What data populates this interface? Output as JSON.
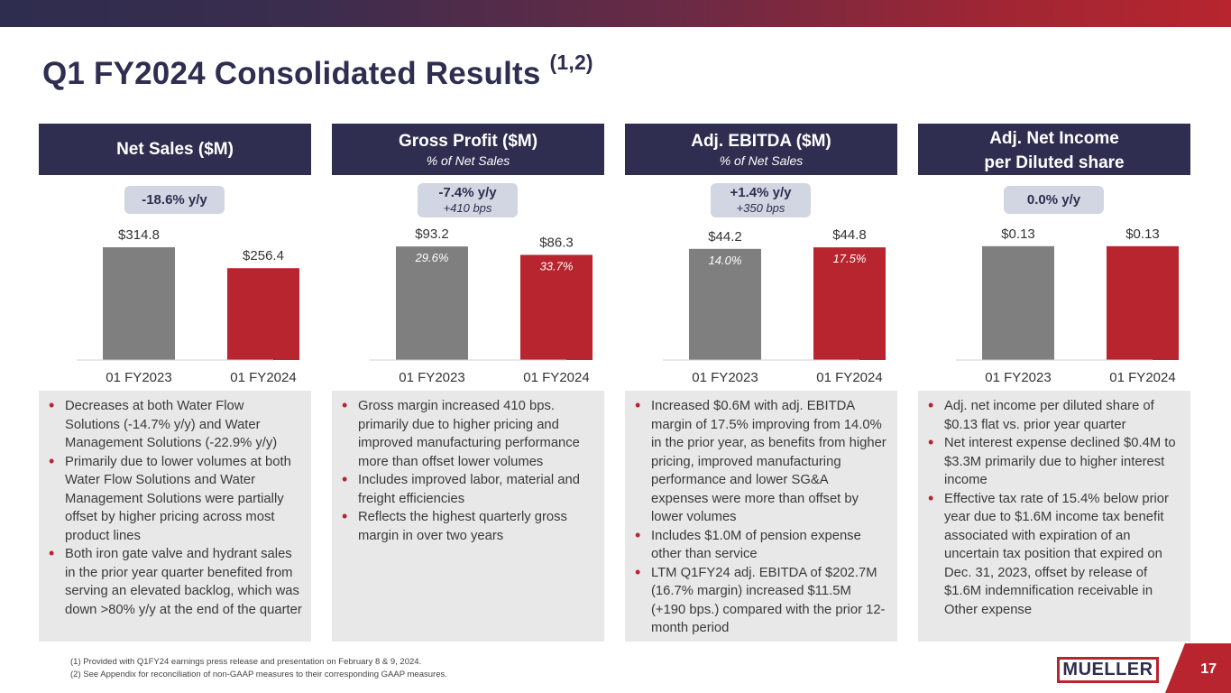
{
  "header": {
    "title": "Q1 FY2024 Consolidated Results",
    "title_sup": "(1,2)"
  },
  "colors": {
    "navy": "#2f2d50",
    "red": "#b8252e",
    "gray_bar": "#7f7f7f",
    "pill_bg": "#d2d5e2",
    "bullet_bg": "#e8e8e8"
  },
  "panels": [
    {
      "title": "Net Sales ($M)",
      "subtitle": "",
      "pill_main": "-18.6% y/y",
      "pill_sub": "",
      "bullets": [
        "Decreases at both Water Flow Solutions (-14.7% y/y) and Water Management Solutions (-22.9% y/y)",
        "Primarily due to lower volumes at both Water Flow Solutions and Water Management Solutions were partially offset by higher pricing across most product lines",
        "Both iron gate valve and hydrant sales in the prior year quarter benefited from serving an elevated backlog, which was down >80% y/y at the end of the quarter"
      ]
    },
    {
      "title": "Gross Profit ($M)",
      "subtitle": "% of Net Sales",
      "pill_main": "-7.4% y/y",
      "pill_sub": "+410 bps",
      "bullets": [
        "Gross margin increased 410 bps. primarily due to higher pricing and improved manufacturing performance more than offset lower volumes",
        "Includes improved labor, material and freight efficiencies",
        "Reflects the highest quarterly gross margin in over two years"
      ]
    },
    {
      "title": "Adj. EBITDA ($M)",
      "subtitle": "% of Net Sales",
      "pill_main": "+1.4% y/y",
      "pill_sub": "+350 bps",
      "bullets": [
        "Increased $0.6M with adj. EBITDA margin of 17.5% improving from 14.0% in the prior year, as benefits from higher pricing, improved manufacturing performance and lower SG&A expenses were more than offset by lower volumes",
        "Includes $1.0M of pension expense other than service",
        "LTM Q1FY24 adj. EBITDA of $202.7M (16.7% margin) increased $11.5M (+190 bps.) compared with the prior 12-month period"
      ]
    },
    {
      "title": "Adj. Net Income",
      "title_line2": "per Diluted share",
      "subtitle": "",
      "pill_main": "0.0% y/y",
      "pill_sub": "",
      "bullets": [
        "Adj. net income per diluted share of $0.13 flat vs. prior year quarter",
        "Net interest expense declined $0.4M to $3.3M primarily due to higher interest income",
        "Effective tax rate of 15.4% below prior year due to $1.6M income tax benefit associated with expiration of an uncertain tax position that expired on Dec. 31, 2023, offset by release of $1.6M indemnification receivable in Other expense"
      ]
    }
  ],
  "chart_data": [
    {
      "type": "bar",
      "title": "Net Sales ($M)",
      "categories": [
        "01 FY2023",
        "01 FY2024"
      ],
      "values": [
        314.8,
        256.4
      ],
      "labels": [
        "$314.8",
        "$256.4"
      ],
      "inner_labels": [
        "",
        ""
      ],
      "ylim": [
        0,
        330
      ]
    },
    {
      "type": "bar",
      "title": "Gross Profit ($M)",
      "categories": [
        "01 FY2023",
        "01 FY2024"
      ],
      "values": [
        93.2,
        86.3
      ],
      "labels": [
        "$93.2",
        "$86.3"
      ],
      "inner_labels": [
        "29.6%",
        "33.7%"
      ],
      "ylim": [
        0,
        97
      ]
    },
    {
      "type": "bar",
      "title": "Adj. EBITDA ($M)",
      "categories": [
        "01 FY2023",
        "01 FY2024"
      ],
      "values": [
        44.2,
        44.8
      ],
      "labels": [
        "$44.2",
        "$44.8"
      ],
      "inner_labels": [
        "14.0%",
        "17.5%"
      ],
      "ylim": [
        0,
        47
      ]
    },
    {
      "type": "bar",
      "title": "Adj. Net Income per Diluted share",
      "categories": [
        "01 FY2023",
        "01 FY2024"
      ],
      "values": [
        0.13,
        0.13
      ],
      "labels": [
        "$0.13",
        "$0.13"
      ],
      "inner_labels": [
        "",
        ""
      ],
      "ylim": [
        0,
        0.135
      ]
    }
  ],
  "footnotes": [
    "(1)  Provided with Q1FY24 earnings press release and presentation on February 8 & 9, 2024.",
    "(2)  See Appendix for reconciliation of non-GAAP measures to their corresponding GAAP measures."
  ],
  "logo_text": "MUELLER",
  "page_number": "17"
}
